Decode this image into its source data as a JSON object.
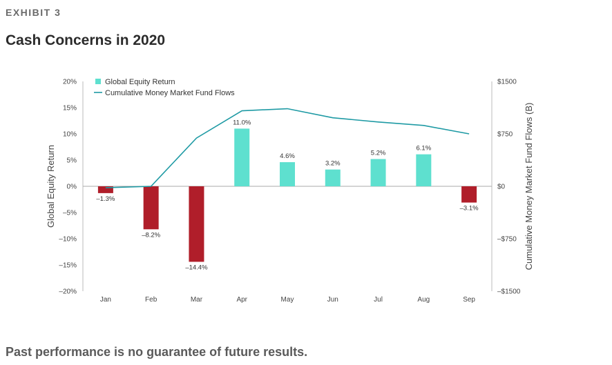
{
  "header": {
    "exhibit": "EXHIBIT 3",
    "title": "Cash Concerns in 2020"
  },
  "footer": {
    "disclaimer": "Past performance is no guarantee of future results."
  },
  "chart_data": {
    "type": "bar",
    "categories": [
      "Jan",
      "Feb",
      "Mar",
      "Apr",
      "May",
      "Jun",
      "Jul",
      "Aug",
      "Sep"
    ],
    "series": [
      {
        "name": "Global Equity Return",
        "type": "bar",
        "axis": "left",
        "values": [
          -1.3,
          -8.2,
          -14.4,
          11.0,
          4.6,
          3.2,
          5.2,
          6.1,
          -3.1
        ],
        "labels": [
          "–1.3%",
          "–8.2%",
          "–14.4%",
          "11.0%",
          "4.6%",
          "3.2%",
          "5.2%",
          "6.1%",
          "–3.1%"
        ]
      },
      {
        "name": "Cumulative Money Market Fund Flows",
        "type": "line",
        "axis": "right",
        "values": [
          -20,
          0,
          690,
          1080,
          1110,
          980,
          920,
          870,
          750
        ]
      }
    ],
    "ylabel": "Global Equity Return",
    "y2label": "Cumulative Money Market Fund Flows (B)",
    "ylim": [
      -20,
      20
    ],
    "y2lim": [
      -1500,
      1500
    ],
    "yticks": [
      "20%",
      "15%",
      "10%",
      "5%",
      "0%",
      "–5%",
      "–10%",
      "–15%",
      "–20%"
    ],
    "y2ticks": [
      "$1500",
      "$750",
      "$0",
      "–$750",
      "–$1500"
    ],
    "legend_position": "top-left",
    "colors": {
      "positive_bar": "#5ee0cf",
      "negative_bar": "#b01e2a",
      "line": "#1e9aa4",
      "zero_line": "#aaaaaa"
    }
  }
}
